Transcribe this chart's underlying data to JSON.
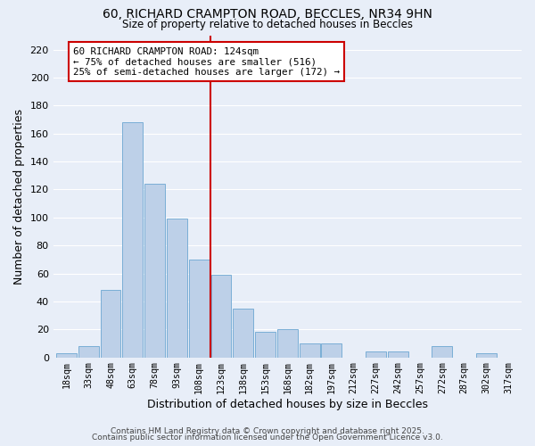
{
  "title1": "60, RICHARD CRAMPTON ROAD, BECCLES, NR34 9HN",
  "title2": "Size of property relative to detached houses in Beccles",
  "xlabel": "Distribution of detached houses by size in Beccles",
  "ylabel": "Number of detached properties",
  "bar_labels": [
    "18sqm",
    "33sqm",
    "48sqm",
    "63sqm",
    "78sqm",
    "93sqm",
    "108sqm",
    "123sqm",
    "138sqm",
    "153sqm",
    "168sqm",
    "182sqm",
    "197sqm",
    "212sqm",
    "227sqm",
    "242sqm",
    "257sqm",
    "272sqm",
    "287sqm",
    "302sqm",
    "317sqm"
  ],
  "bar_values": [
    3,
    8,
    48,
    168,
    124,
    99,
    70,
    59,
    35,
    18,
    20,
    10,
    10,
    0,
    4,
    4,
    0,
    8,
    0,
    3,
    0
  ],
  "bar_color": "#bdd0e8",
  "bar_edge_color": "#7aaed6",
  "vline_x": 6.5,
  "vline_color": "#cc0000",
  "annotation_title": "60 RICHARD CRAMPTON ROAD: 124sqm",
  "annotation_line1": "← 75% of detached houses are smaller (516)",
  "annotation_line2": "25% of semi-detached houses are larger (172) →",
  "annotation_box_edge": "#cc0000",
  "ylim": [
    0,
    230
  ],
  "yticks": [
    0,
    20,
    40,
    60,
    80,
    100,
    120,
    140,
    160,
    180,
    200,
    220
  ],
  "background_color": "#e8eef8",
  "grid_color": "#ffffff",
  "footer1": "Contains HM Land Registry data © Crown copyright and database right 2025.",
  "footer2": "Contains public sector information licensed under the Open Government Licence v3.0."
}
